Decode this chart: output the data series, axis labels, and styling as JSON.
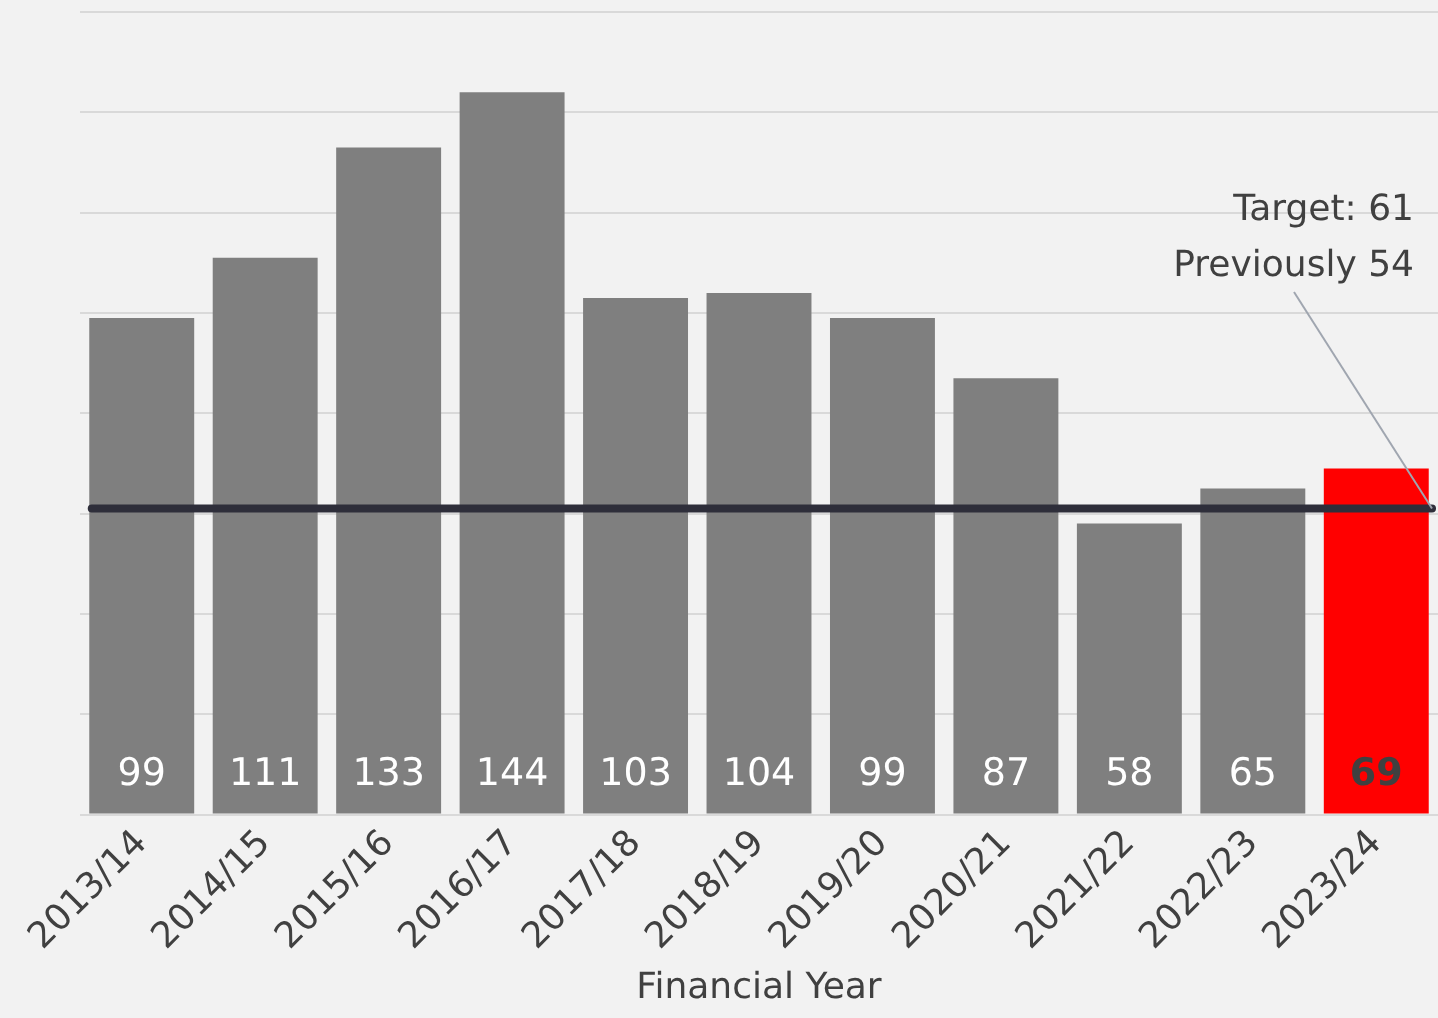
{
  "chart_data": {
    "type": "bar",
    "xlabel": "Financial Year",
    "categories": [
      "2013/14",
      "2014/15",
      "2015/16",
      "2016/17",
      "2017/18",
      "2018/19",
      "2019/20",
      "2020/21",
      "2021/22",
      "2022/23",
      "2023/24"
    ],
    "values": [
      99,
      111,
      133,
      144,
      103,
      104,
      99,
      87,
      58,
      65,
      69
    ],
    "colors": [
      "#7f7f7f",
      "#7f7f7f",
      "#7f7f7f",
      "#7f7f7f",
      "#7f7f7f",
      "#7f7f7f",
      "#7f7f7f",
      "#7f7f7f",
      "#7f7f7f",
      "#7f7f7f",
      "#ff0000"
    ],
    "ylim": [
      0,
      160
    ],
    "yticks": [
      {
        "value": 0,
        "label": null
      },
      {
        "value": 20,
        "label": null
      },
      {
        "value": 40,
        "label": null
      },
      {
        "value": 60,
        "label": null
      },
      {
        "value": 80,
        "label": null
      },
      {
        "value": 100,
        "label": null
      },
      {
        "value": 120,
        "label": null
      },
      {
        "value": 140,
        "label": null
      },
      {
        "value": 160,
        "label": null
      }
    ],
    "grid": "y",
    "tick_labels": "x",
    "data_labels": true,
    "legend": false,
    "ref_lines": [
      {
        "axis": "y",
        "value": 61,
        "color": "#2e2e3a"
      }
    ],
    "annotations": [
      "Target: 61\nPreviously 54"
    ]
  }
}
